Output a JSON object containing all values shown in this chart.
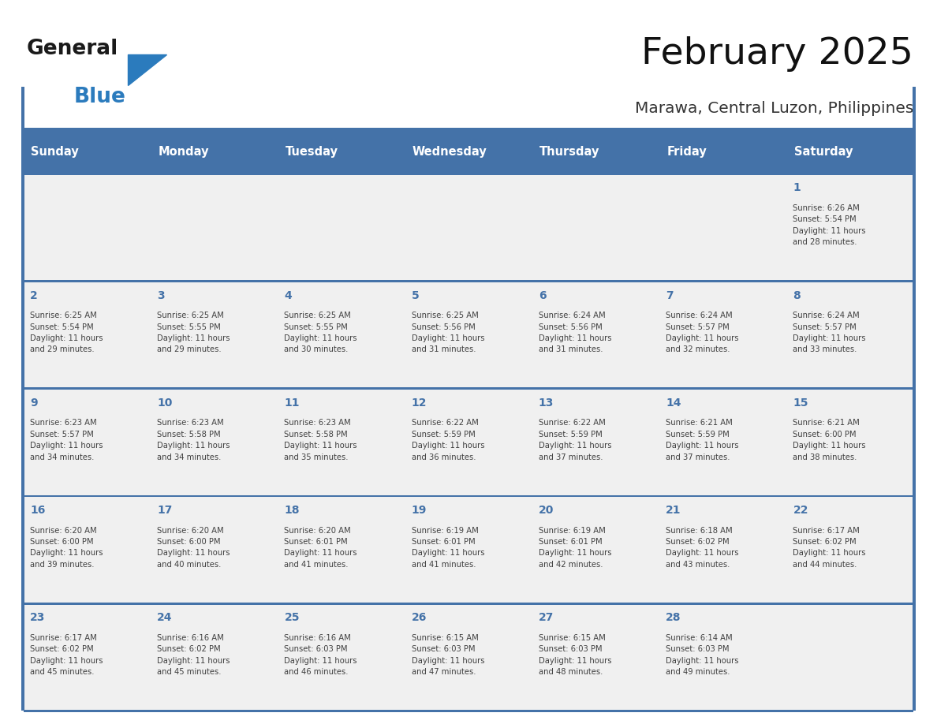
{
  "title": "February 2025",
  "subtitle": "Marawa, Central Luzon, Philippines",
  "header_bg": "#4472A8",
  "header_text_color": "#FFFFFF",
  "cell_bg": "#F0F0F0",
  "day_number_color": "#4472A8",
  "info_text_color": "#404040",
  "border_color": "#4472A8",
  "days_of_week": [
    "Sunday",
    "Monday",
    "Tuesday",
    "Wednesday",
    "Thursday",
    "Friday",
    "Saturday"
  ],
  "weeks": [
    [
      {
        "day": null,
        "info": null
      },
      {
        "day": null,
        "info": null
      },
      {
        "day": null,
        "info": null
      },
      {
        "day": null,
        "info": null
      },
      {
        "day": null,
        "info": null
      },
      {
        "day": null,
        "info": null
      },
      {
        "day": 1,
        "info": "Sunrise: 6:26 AM\nSunset: 5:54 PM\nDaylight: 11 hours\nand 28 minutes."
      }
    ],
    [
      {
        "day": 2,
        "info": "Sunrise: 6:25 AM\nSunset: 5:54 PM\nDaylight: 11 hours\nand 29 minutes."
      },
      {
        "day": 3,
        "info": "Sunrise: 6:25 AM\nSunset: 5:55 PM\nDaylight: 11 hours\nand 29 minutes."
      },
      {
        "day": 4,
        "info": "Sunrise: 6:25 AM\nSunset: 5:55 PM\nDaylight: 11 hours\nand 30 minutes."
      },
      {
        "day": 5,
        "info": "Sunrise: 6:25 AM\nSunset: 5:56 PM\nDaylight: 11 hours\nand 31 minutes."
      },
      {
        "day": 6,
        "info": "Sunrise: 6:24 AM\nSunset: 5:56 PM\nDaylight: 11 hours\nand 31 minutes."
      },
      {
        "day": 7,
        "info": "Sunrise: 6:24 AM\nSunset: 5:57 PM\nDaylight: 11 hours\nand 32 minutes."
      },
      {
        "day": 8,
        "info": "Sunrise: 6:24 AM\nSunset: 5:57 PM\nDaylight: 11 hours\nand 33 minutes."
      }
    ],
    [
      {
        "day": 9,
        "info": "Sunrise: 6:23 AM\nSunset: 5:57 PM\nDaylight: 11 hours\nand 34 minutes."
      },
      {
        "day": 10,
        "info": "Sunrise: 6:23 AM\nSunset: 5:58 PM\nDaylight: 11 hours\nand 34 minutes."
      },
      {
        "day": 11,
        "info": "Sunrise: 6:23 AM\nSunset: 5:58 PM\nDaylight: 11 hours\nand 35 minutes."
      },
      {
        "day": 12,
        "info": "Sunrise: 6:22 AM\nSunset: 5:59 PM\nDaylight: 11 hours\nand 36 minutes."
      },
      {
        "day": 13,
        "info": "Sunrise: 6:22 AM\nSunset: 5:59 PM\nDaylight: 11 hours\nand 37 minutes."
      },
      {
        "day": 14,
        "info": "Sunrise: 6:21 AM\nSunset: 5:59 PM\nDaylight: 11 hours\nand 37 minutes."
      },
      {
        "day": 15,
        "info": "Sunrise: 6:21 AM\nSunset: 6:00 PM\nDaylight: 11 hours\nand 38 minutes."
      }
    ],
    [
      {
        "day": 16,
        "info": "Sunrise: 6:20 AM\nSunset: 6:00 PM\nDaylight: 11 hours\nand 39 minutes."
      },
      {
        "day": 17,
        "info": "Sunrise: 6:20 AM\nSunset: 6:00 PM\nDaylight: 11 hours\nand 40 minutes."
      },
      {
        "day": 18,
        "info": "Sunrise: 6:20 AM\nSunset: 6:01 PM\nDaylight: 11 hours\nand 41 minutes."
      },
      {
        "day": 19,
        "info": "Sunrise: 6:19 AM\nSunset: 6:01 PM\nDaylight: 11 hours\nand 41 minutes."
      },
      {
        "day": 20,
        "info": "Sunrise: 6:19 AM\nSunset: 6:01 PM\nDaylight: 11 hours\nand 42 minutes."
      },
      {
        "day": 21,
        "info": "Sunrise: 6:18 AM\nSunset: 6:02 PM\nDaylight: 11 hours\nand 43 minutes."
      },
      {
        "day": 22,
        "info": "Sunrise: 6:17 AM\nSunset: 6:02 PM\nDaylight: 11 hours\nand 44 minutes."
      }
    ],
    [
      {
        "day": 23,
        "info": "Sunrise: 6:17 AM\nSunset: 6:02 PM\nDaylight: 11 hours\nand 45 minutes."
      },
      {
        "day": 24,
        "info": "Sunrise: 6:16 AM\nSunset: 6:02 PM\nDaylight: 11 hours\nand 45 minutes."
      },
      {
        "day": 25,
        "info": "Sunrise: 6:16 AM\nSunset: 6:03 PM\nDaylight: 11 hours\nand 46 minutes."
      },
      {
        "day": 26,
        "info": "Sunrise: 6:15 AM\nSunset: 6:03 PM\nDaylight: 11 hours\nand 47 minutes."
      },
      {
        "day": 27,
        "info": "Sunrise: 6:15 AM\nSunset: 6:03 PM\nDaylight: 11 hours\nand 48 minutes."
      },
      {
        "day": 28,
        "info": "Sunrise: 6:14 AM\nSunset: 6:03 PM\nDaylight: 11 hours\nand 49 minutes."
      },
      {
        "day": null,
        "info": null
      }
    ]
  ],
  "logo_general_color": "#1a1a1a",
  "logo_blue_color": "#2B7BBD",
  "logo_triangle_color": "#2B7BBD",
  "logo_text_general": "General",
  "logo_text_blue": "Blue"
}
